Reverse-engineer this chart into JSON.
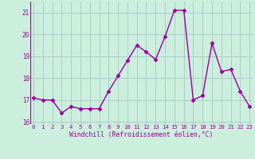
{
  "x": [
    0,
    1,
    2,
    3,
    4,
    5,
    6,
    7,
    8,
    9,
    10,
    11,
    12,
    13,
    14,
    15,
    16,
    17,
    18,
    19,
    20,
    21,
    22,
    23
  ],
  "y": [
    17.1,
    17.0,
    17.0,
    16.4,
    16.7,
    16.6,
    16.6,
    16.6,
    17.4,
    18.1,
    18.8,
    19.5,
    19.2,
    18.85,
    19.9,
    21.1,
    21.1,
    17.0,
    17.2,
    19.6,
    18.3,
    18.4,
    17.4,
    16.7
  ],
  "line_color": "#990099",
  "marker": "D",
  "marker_size": 2.5,
  "bg_color": "#cceedd",
  "grid_color": "#aacccc",
  "xlabel": "Windchill (Refroidissement éolien,°C)",
  "xlabel_color": "#990099",
  "tick_color": "#990099",
  "ylim": [
    15.9,
    21.5
  ],
  "yticks": [
    16,
    17,
    18,
    19,
    20,
    21
  ],
  "xlim": [
    -0.3,
    23.3
  ],
  "linewidth": 1.0
}
